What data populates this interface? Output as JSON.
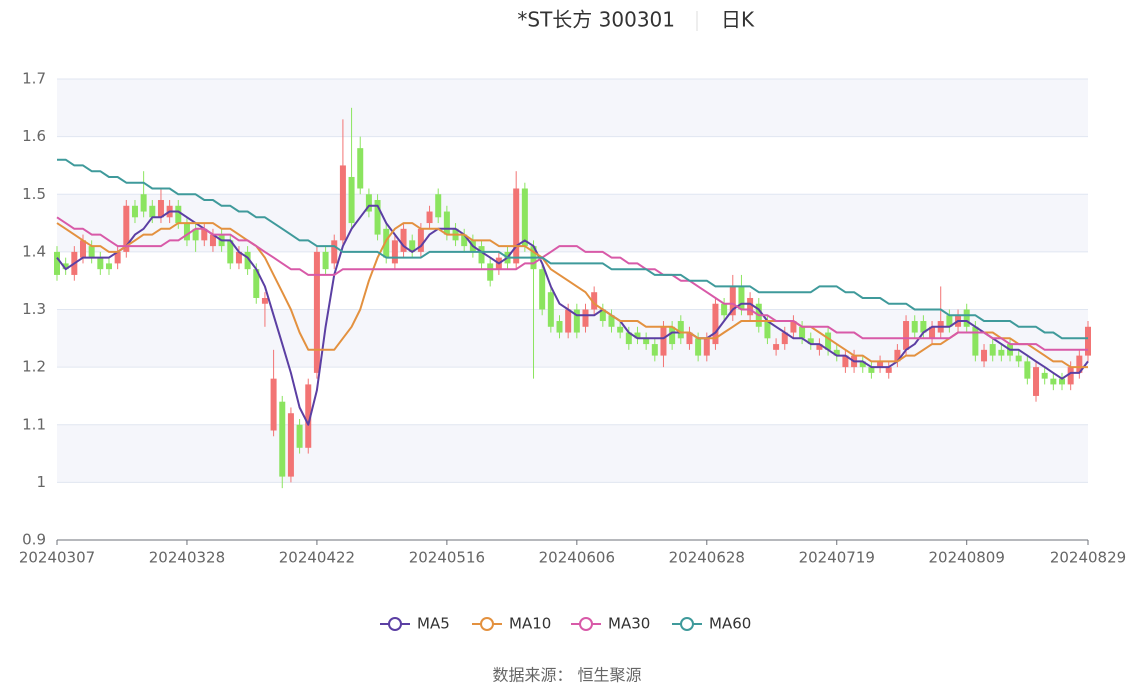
{
  "chart_data": {
    "type": "candlestick",
    "title": "*ST长方 300301",
    "subtitle": "日K",
    "source": "数据来源：  恒生聚源",
    "ylim": [
      0.9,
      1.7
    ],
    "yticks": [
      0.9,
      1,
      1.1,
      1.2,
      1.3,
      1.4,
      1.5,
      1.6,
      1.7
    ],
    "grid": true,
    "up_color": "#f27474",
    "down_color": "#8be45f",
    "categories": [
      "20240307",
      null,
      null,
      null,
      null,
      null,
      null,
      null,
      null,
      null,
      null,
      null,
      null,
      null,
      null,
      "20240328",
      null,
      null,
      null,
      null,
      null,
      null,
      null,
      null,
      null,
      null,
      null,
      null,
      null,
      null,
      "20240422",
      null,
      null,
      null,
      null,
      null,
      null,
      null,
      null,
      null,
      null,
      null,
      null,
      null,
      null,
      "20240516",
      null,
      null,
      null,
      null,
      null,
      null,
      null,
      null,
      null,
      null,
      null,
      null,
      null,
      null,
      "20240606",
      null,
      null,
      null,
      null,
      null,
      null,
      null,
      null,
      null,
      null,
      null,
      null,
      null,
      null,
      "20240628",
      null,
      null,
      null,
      null,
      null,
      null,
      null,
      null,
      null,
      null,
      null,
      null,
      null,
      null,
      "20240719",
      null,
      null,
      null,
      null,
      null,
      null,
      null,
      null,
      null,
      null,
      null,
      null,
      null,
      null,
      "20240809",
      null,
      null,
      null,
      null,
      null,
      null,
      null,
      null,
      null,
      null,
      null,
      null,
      null,
      "20240829"
    ],
    "candles": {
      "open": [
        1.4,
        1.38,
        1.36,
        1.39,
        1.41,
        1.39,
        1.38,
        1.38,
        1.4,
        1.48,
        1.5,
        1.48,
        1.46,
        1.46,
        1.48,
        1.45,
        1.44,
        1.42,
        1.41,
        1.43,
        1.42,
        1.38,
        1.4,
        1.37,
        1.31,
        1.09,
        1.14,
        1.01,
        1.1,
        1.06,
        1.19,
        1.4,
        1.38,
        1.42,
        1.53,
        1.58,
        1.5,
        1.49,
        1.44,
        1.38,
        1.4,
        1.42,
        1.4,
        1.45,
        1.5,
        1.47,
        1.44,
        1.43,
        1.42,
        1.41,
        1.38,
        1.37,
        1.4,
        1.38,
        1.51,
        1.41,
        1.37,
        1.33,
        1.28,
        1.26,
        1.3,
        1.27,
        1.3,
        1.3,
        1.29,
        1.27,
        1.26,
        1.26,
        1.25,
        1.24,
        1.22,
        1.27,
        1.28,
        1.24,
        1.25,
        1.22,
        1.24,
        1.31,
        1.29,
        1.34,
        1.29,
        1.31,
        1.28,
        1.23,
        1.24,
        1.26,
        1.27,
        1.25,
        1.23,
        1.26,
        1.23,
        1.2,
        1.2,
        1.21,
        1.2,
        1.2,
        1.19,
        1.21,
        1.23,
        1.28,
        1.28,
        1.25,
        1.26,
        1.29,
        1.27,
        1.3,
        1.27,
        1.21,
        1.24,
        1.23,
        1.24,
        1.22,
        1.21,
        1.15,
        1.19,
        1.18,
        1.18,
        1.17,
        1.19,
        1.22
      ],
      "close": [
        1.36,
        1.37,
        1.4,
        1.42,
        1.39,
        1.37,
        1.37,
        1.4,
        1.48,
        1.46,
        1.47,
        1.46,
        1.49,
        1.48,
        1.45,
        1.42,
        1.42,
        1.44,
        1.43,
        1.41,
        1.38,
        1.4,
        1.37,
        1.32,
        1.32,
        1.18,
        1.01,
        1.12,
        1.06,
        1.17,
        1.4,
        1.37,
        1.42,
        1.55,
        1.45,
        1.51,
        1.47,
        1.43,
        1.39,
        1.42,
        1.44,
        1.4,
        1.44,
        1.47,
        1.46,
        1.43,
        1.42,
        1.41,
        1.4,
        1.38,
        1.35,
        1.39,
        1.38,
        1.51,
        1.41,
        1.37,
        1.3,
        1.27,
        1.26,
        1.3,
        1.26,
        1.3,
        1.33,
        1.28,
        1.27,
        1.26,
        1.24,
        1.25,
        1.24,
        1.22,
        1.27,
        1.24,
        1.25,
        1.26,
        1.22,
        1.25,
        1.31,
        1.29,
        1.34,
        1.3,
        1.32,
        1.27,
        1.25,
        1.24,
        1.26,
        1.28,
        1.25,
        1.24,
        1.24,
        1.23,
        1.22,
        1.22,
        1.22,
        1.2,
        1.19,
        1.21,
        1.2,
        1.23,
        1.28,
        1.26,
        1.26,
        1.27,
        1.28,
        1.27,
        1.29,
        1.27,
        1.22,
        1.23,
        1.22,
        1.22,
        1.22,
        1.21,
        1.18,
        1.2,
        1.18,
        1.17,
        1.17,
        1.2,
        1.22,
        1.27
      ],
      "high": [
        1.41,
        1.39,
        1.41,
        1.43,
        1.42,
        1.4,
        1.39,
        1.41,
        1.49,
        1.49,
        1.54,
        1.49,
        1.51,
        1.49,
        1.49,
        1.46,
        1.45,
        1.45,
        1.44,
        1.44,
        1.43,
        1.41,
        1.41,
        1.38,
        1.33,
        1.23,
        1.15,
        1.13,
        1.11,
        1.18,
        1.41,
        1.41,
        1.43,
        1.63,
        1.65,
        1.6,
        1.51,
        1.5,
        1.45,
        1.43,
        1.45,
        1.43,
        1.45,
        1.48,
        1.51,
        1.48,
        1.45,
        1.44,
        1.43,
        1.42,
        1.39,
        1.4,
        1.41,
        1.54,
        1.52,
        1.42,
        1.38,
        1.34,
        1.29,
        1.31,
        1.31,
        1.31,
        1.34,
        1.31,
        1.3,
        1.28,
        1.27,
        1.27,
        1.26,
        1.25,
        1.28,
        1.28,
        1.29,
        1.27,
        1.26,
        1.26,
        1.32,
        1.32,
        1.36,
        1.36,
        1.33,
        1.32,
        1.29,
        1.25,
        1.27,
        1.29,
        1.28,
        1.26,
        1.25,
        1.27,
        1.24,
        1.23,
        1.23,
        1.22,
        1.21,
        1.22,
        1.21,
        1.24,
        1.29,
        1.29,
        1.29,
        1.28,
        1.34,
        1.3,
        1.3,
        1.31,
        1.28,
        1.24,
        1.25,
        1.24,
        1.25,
        1.23,
        1.22,
        1.21,
        1.2,
        1.19,
        1.19,
        1.21,
        1.23,
        1.28
      ],
      "low": [
        1.35,
        1.36,
        1.35,
        1.38,
        1.38,
        1.36,
        1.36,
        1.37,
        1.39,
        1.45,
        1.46,
        1.45,
        1.45,
        1.45,
        1.44,
        1.41,
        1.4,
        1.41,
        1.4,
        1.4,
        1.37,
        1.37,
        1.36,
        1.31,
        1.27,
        1.08,
        0.99,
        1.0,
        1.05,
        1.05,
        1.18,
        1.36,
        1.37,
        1.41,
        1.44,
        1.5,
        1.46,
        1.42,
        1.38,
        1.37,
        1.39,
        1.39,
        1.39,
        1.44,
        1.45,
        1.42,
        1.41,
        1.4,
        1.39,
        1.37,
        1.34,
        1.36,
        1.37,
        1.37,
        1.4,
        1.18,
        1.29,
        1.26,
        1.25,
        1.25,
        1.25,
        1.26,
        1.29,
        1.27,
        1.26,
        1.25,
        1.23,
        1.24,
        1.23,
        1.21,
        1.2,
        1.23,
        1.24,
        1.23,
        1.21,
        1.21,
        1.23,
        1.28,
        1.28,
        1.29,
        1.28,
        1.26,
        1.24,
        1.22,
        1.23,
        1.25,
        1.24,
        1.23,
        1.22,
        1.22,
        1.21,
        1.19,
        1.19,
        1.19,
        1.18,
        1.19,
        1.18,
        1.2,
        1.22,
        1.25,
        1.25,
        1.24,
        1.25,
        1.26,
        1.26,
        1.26,
        1.21,
        1.2,
        1.21,
        1.21,
        1.21,
        1.2,
        1.17,
        1.14,
        1.17,
        1.16,
        1.16,
        1.16,
        1.18,
        1.21
      ]
    },
    "series": [
      {
        "name": "MA5",
        "color": "#5b3fa3",
        "values": [
          1.39,
          1.37,
          1.38,
          1.39,
          1.39,
          1.39,
          1.39,
          1.4,
          1.41,
          1.43,
          1.44,
          1.46,
          1.46,
          1.47,
          1.47,
          1.46,
          1.45,
          1.44,
          1.43,
          1.42,
          1.42,
          1.4,
          1.39,
          1.37,
          1.34,
          1.29,
          1.24,
          1.19,
          1.13,
          1.1,
          1.16,
          1.27,
          1.36,
          1.41,
          1.44,
          1.46,
          1.48,
          1.48,
          1.45,
          1.43,
          1.41,
          1.4,
          1.41,
          1.43,
          1.44,
          1.44,
          1.44,
          1.43,
          1.41,
          1.4,
          1.39,
          1.38,
          1.39,
          1.41,
          1.42,
          1.41,
          1.38,
          1.34,
          1.31,
          1.3,
          1.29,
          1.29,
          1.29,
          1.3,
          1.29,
          1.28,
          1.26,
          1.25,
          1.25,
          1.25,
          1.25,
          1.26,
          1.26,
          1.26,
          1.25,
          1.25,
          1.26,
          1.28,
          1.3,
          1.31,
          1.31,
          1.3,
          1.28,
          1.27,
          1.26,
          1.25,
          1.25,
          1.24,
          1.24,
          1.23,
          1.22,
          1.22,
          1.21,
          1.21,
          1.2,
          1.2,
          1.2,
          1.21,
          1.23,
          1.24,
          1.26,
          1.27,
          1.27,
          1.27,
          1.28,
          1.28,
          1.27,
          1.26,
          1.25,
          1.24,
          1.23,
          1.23,
          1.22,
          1.21,
          1.2,
          1.19,
          1.18,
          1.19,
          1.19,
          1.21
        ]
      },
      {
        "name": "MA10",
        "color": "#e3913f",
        "values": [
          1.45,
          1.44,
          1.43,
          1.42,
          1.41,
          1.41,
          1.4,
          1.4,
          1.41,
          1.42,
          1.43,
          1.43,
          1.44,
          1.44,
          1.45,
          1.45,
          1.45,
          1.45,
          1.45,
          1.44,
          1.44,
          1.43,
          1.42,
          1.41,
          1.39,
          1.36,
          1.33,
          1.3,
          1.26,
          1.23,
          1.23,
          1.23,
          1.23,
          1.25,
          1.27,
          1.3,
          1.35,
          1.39,
          1.42,
          1.44,
          1.45,
          1.45,
          1.44,
          1.44,
          1.44,
          1.43,
          1.43,
          1.43,
          1.42,
          1.42,
          1.42,
          1.41,
          1.41,
          1.41,
          1.41,
          1.4,
          1.39,
          1.37,
          1.36,
          1.35,
          1.34,
          1.33,
          1.31,
          1.3,
          1.29,
          1.28,
          1.28,
          1.28,
          1.27,
          1.27,
          1.27,
          1.27,
          1.26,
          1.26,
          1.25,
          1.25,
          1.25,
          1.26,
          1.27,
          1.28,
          1.28,
          1.28,
          1.28,
          1.28,
          1.28,
          1.28,
          1.27,
          1.27,
          1.26,
          1.25,
          1.24,
          1.23,
          1.22,
          1.22,
          1.21,
          1.21,
          1.21,
          1.21,
          1.22,
          1.22,
          1.23,
          1.24,
          1.24,
          1.25,
          1.26,
          1.26,
          1.26,
          1.26,
          1.26,
          1.25,
          1.25,
          1.24,
          1.24,
          1.23,
          1.22,
          1.21,
          1.21,
          1.2,
          1.2,
          1.2
        ]
      },
      {
        "name": "MA30",
        "color": "#d85aa8",
        "values": [
          1.46,
          1.45,
          1.44,
          1.44,
          1.43,
          1.43,
          1.42,
          1.41,
          1.41,
          1.41,
          1.41,
          1.41,
          1.41,
          1.42,
          1.42,
          1.43,
          1.44,
          1.44,
          1.43,
          1.43,
          1.43,
          1.42,
          1.42,
          1.41,
          1.4,
          1.39,
          1.38,
          1.37,
          1.37,
          1.36,
          1.36,
          1.36,
          1.36,
          1.37,
          1.37,
          1.37,
          1.37,
          1.37,
          1.37,
          1.37,
          1.37,
          1.37,
          1.37,
          1.37,
          1.37,
          1.37,
          1.37,
          1.37,
          1.37,
          1.37,
          1.37,
          1.37,
          1.37,
          1.37,
          1.38,
          1.38,
          1.39,
          1.4,
          1.41,
          1.41,
          1.41,
          1.4,
          1.4,
          1.4,
          1.39,
          1.39,
          1.38,
          1.38,
          1.37,
          1.37,
          1.36,
          1.36,
          1.35,
          1.35,
          1.34,
          1.33,
          1.32,
          1.31,
          1.31,
          1.3,
          1.3,
          1.29,
          1.29,
          1.28,
          1.28,
          1.28,
          1.27,
          1.27,
          1.27,
          1.27,
          1.26,
          1.26,
          1.26,
          1.25,
          1.25,
          1.25,
          1.25,
          1.25,
          1.25,
          1.25,
          1.25,
          1.25,
          1.25,
          1.25,
          1.26,
          1.26,
          1.26,
          1.26,
          1.25,
          1.25,
          1.24,
          1.24,
          1.24,
          1.24,
          1.23,
          1.23,
          1.23,
          1.23,
          1.23,
          1.23
        ]
      },
      {
        "name": "MA60",
        "color": "#3f9a9b",
        "values": [
          1.56,
          1.56,
          1.55,
          1.55,
          1.54,
          1.54,
          1.53,
          1.53,
          1.52,
          1.52,
          1.52,
          1.51,
          1.51,
          1.51,
          1.5,
          1.5,
          1.5,
          1.49,
          1.49,
          1.48,
          1.48,
          1.47,
          1.47,
          1.46,
          1.46,
          1.45,
          1.44,
          1.43,
          1.42,
          1.42,
          1.41,
          1.41,
          1.41,
          1.4,
          1.4,
          1.4,
          1.4,
          1.4,
          1.39,
          1.39,
          1.39,
          1.39,
          1.39,
          1.4,
          1.4,
          1.4,
          1.4,
          1.4,
          1.4,
          1.4,
          1.4,
          1.4,
          1.39,
          1.39,
          1.39,
          1.39,
          1.39,
          1.38,
          1.38,
          1.38,
          1.38,
          1.38,
          1.38,
          1.38,
          1.37,
          1.37,
          1.37,
          1.37,
          1.37,
          1.36,
          1.36,
          1.36,
          1.36,
          1.35,
          1.35,
          1.35,
          1.34,
          1.34,
          1.34,
          1.34,
          1.34,
          1.33,
          1.33,
          1.33,
          1.33,
          1.33,
          1.33,
          1.33,
          1.34,
          1.34,
          1.34,
          1.33,
          1.33,
          1.32,
          1.32,
          1.32,
          1.31,
          1.31,
          1.31,
          1.3,
          1.3,
          1.3,
          1.3,
          1.29,
          1.29,
          1.29,
          1.29,
          1.28,
          1.28,
          1.28,
          1.28,
          1.27,
          1.27,
          1.27,
          1.26,
          1.26,
          1.25,
          1.25,
          1.25,
          1.25
        ]
      }
    ]
  }
}
